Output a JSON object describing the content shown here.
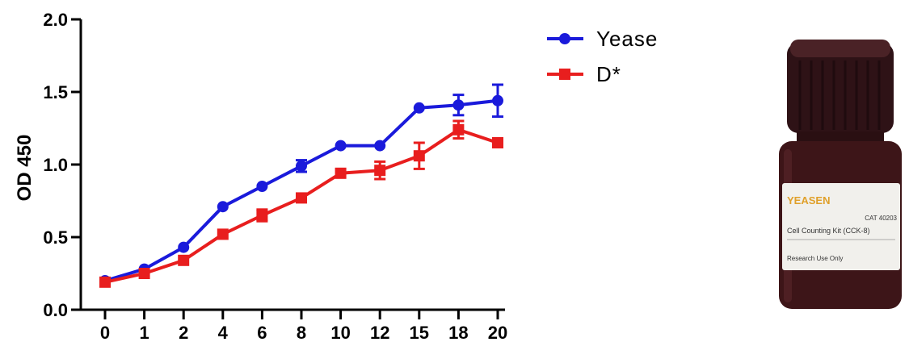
{
  "chart_data": {
    "type": "line",
    "title": "",
    "xlabel": "",
    "ylabel": "OD 450",
    "x": [
      "0",
      "1",
      "2",
      "4",
      "6",
      "8",
      "10",
      "12",
      "15",
      "18",
      "20"
    ],
    "ylim": [
      0,
      2.0
    ],
    "yticks": [
      "0.0",
      "0.5",
      "1.0",
      "1.5",
      "2.0"
    ],
    "grid": false,
    "legend_position": "top-right",
    "series": [
      {
        "name": "Yease",
        "color": "#1a1adb",
        "marker": "circle",
        "values": [
          0.2,
          0.28,
          0.43,
          0.71,
          0.85,
          0.99,
          1.13,
          1.13,
          1.39,
          1.41,
          1.44
        ],
        "errors": [
          0.01,
          0.01,
          0.01,
          0.01,
          0.01,
          0.04,
          0.01,
          0.01,
          0.01,
          0.07,
          0.11
        ]
      },
      {
        "name": "D*",
        "color": "#e81e1e",
        "marker": "square",
        "values": [
          0.19,
          0.25,
          0.34,
          0.52,
          0.65,
          0.77,
          0.94,
          0.96,
          1.06,
          1.24,
          1.15
        ],
        "errors": [
          0.01,
          0.01,
          0.01,
          0.01,
          0.04,
          0.01,
          0.01,
          0.06,
          0.09,
          0.06,
          0.01
        ]
      }
    ]
  },
  "product": {
    "brand": "YEASEN",
    "cat": "CAT 40203",
    "name": "Cell Counting Kit (CCK-8)",
    "note": "Research Use Only"
  },
  "colors": {
    "bottle_body": "#3d1518",
    "cap": "#2e1216",
    "label_bg": "#f1f0ec",
    "brand": "#e0a02a"
  }
}
